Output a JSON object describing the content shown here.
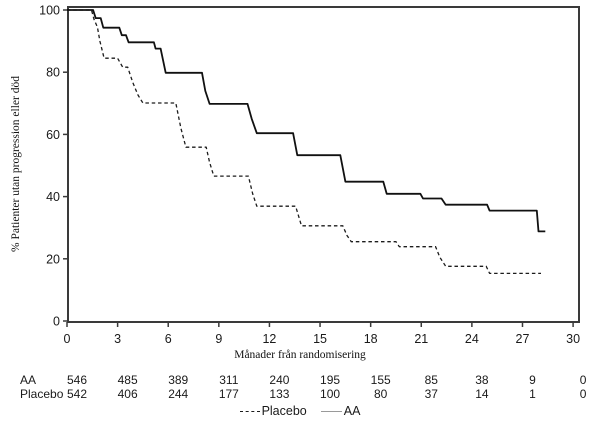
{
  "chart_data": {
    "type": "line",
    "subtype": "kaplan-meier-survival",
    "title": "",
    "xlabel": "Månader från randomisering",
    "ylabel": "% Patienter utan progression eller död",
    "xlim": [
      0,
      30
    ],
    "ylim": [
      0,
      100
    ],
    "xticks": [
      0,
      3,
      6,
      9,
      12,
      15,
      18,
      21,
      24,
      27,
      30
    ],
    "yticks": [
      0,
      20,
      40,
      60,
      80,
      100
    ],
    "grid": false,
    "legend_position": "bottom-center",
    "series": [
      {
        "name": "Placebo",
        "line_style": "dashed",
        "color": "#1c1c1c",
        "points": [
          [
            0,
            100
          ],
          [
            1.45,
            100
          ],
          [
            1.6,
            97
          ],
          [
            1.8,
            94.5
          ],
          [
            1.95,
            90
          ],
          [
            2.2,
            84.5
          ],
          [
            3.0,
            84.5
          ],
          [
            3.3,
            81.6
          ],
          [
            3.6,
            81.6
          ],
          [
            3.9,
            76.7
          ],
          [
            4.2,
            72.7
          ],
          [
            4.5,
            70.1
          ],
          [
            6.45,
            70.1
          ],
          [
            6.75,
            62.0
          ],
          [
            7.05,
            55.9
          ],
          [
            8.25,
            55.9
          ],
          [
            8.45,
            51.0
          ],
          [
            8.7,
            46.6
          ],
          [
            10.75,
            46.6
          ],
          [
            11.0,
            41.0
          ],
          [
            11.25,
            36.9
          ],
          [
            13.55,
            36.9
          ],
          [
            13.9,
            30.6
          ],
          [
            16.35,
            30.6
          ],
          [
            16.6,
            27.5
          ],
          [
            16.85,
            25.5
          ],
          [
            19.5,
            25.5
          ],
          [
            19.7,
            23.9
          ],
          [
            21.85,
            23.9
          ],
          [
            22.1,
            20.5
          ],
          [
            22.45,
            17.6
          ],
          [
            24.85,
            17.6
          ],
          [
            25.05,
            15.3
          ],
          [
            28.1,
            15.3
          ]
        ]
      },
      {
        "name": "AA",
        "line_style": "solid",
        "color": "#111111",
        "points": [
          [
            0,
            100
          ],
          [
            1.55,
            100
          ],
          [
            1.7,
            97.4
          ],
          [
            2.0,
            97.4
          ],
          [
            2.15,
            94.3
          ],
          [
            3.1,
            94.3
          ],
          [
            3.25,
            91.9
          ],
          [
            3.5,
            91.9
          ],
          [
            3.65,
            89.6
          ],
          [
            5.15,
            89.6
          ],
          [
            5.25,
            87.6
          ],
          [
            5.55,
            87.6
          ],
          [
            5.85,
            79.8
          ],
          [
            8.0,
            79.8
          ],
          [
            8.2,
            74.0
          ],
          [
            8.45,
            69.8
          ],
          [
            10.7,
            69.8
          ],
          [
            10.95,
            65.0
          ],
          [
            11.25,
            60.4
          ],
          [
            13.4,
            60.4
          ],
          [
            13.65,
            53.3
          ],
          [
            16.2,
            53.3
          ],
          [
            16.5,
            44.8
          ],
          [
            18.75,
            44.8
          ],
          [
            18.95,
            40.9
          ],
          [
            20.95,
            40.9
          ],
          [
            21.1,
            39.4
          ],
          [
            22.2,
            39.4
          ],
          [
            22.45,
            37.4
          ],
          [
            24.9,
            37.4
          ],
          [
            25.05,
            35.5
          ],
          [
            27.85,
            35.5
          ],
          [
            27.95,
            28.8
          ],
          [
            28.35,
            28.8
          ]
        ]
      }
    ]
  },
  "risk_table": {
    "columns": [
      0,
      3,
      6,
      9,
      12,
      15,
      18,
      21,
      24,
      27,
      30
    ],
    "rows": [
      {
        "label": "AA",
        "values": [
          "546",
          "485",
          "389",
          "311",
          "240",
          "195",
          "155",
          "85",
          "38",
          "9",
          "0"
        ]
      },
      {
        "label": "Placebo",
        "values": [
          "542",
          "406",
          "244",
          "177",
          "133",
          "100",
          "80",
          "37",
          "14",
          "1",
          "0"
        ]
      }
    ]
  },
  "legend": {
    "items": [
      {
        "label": "Placebo",
        "style": "dashed"
      },
      {
        "label": "AA",
        "style": "solid"
      }
    ]
  },
  "colors": {
    "axis": "#3a3a3a",
    "curve": "#1a1a1a",
    "text": "#000000",
    "legend_solid_sample": "#9a9a9a"
  }
}
